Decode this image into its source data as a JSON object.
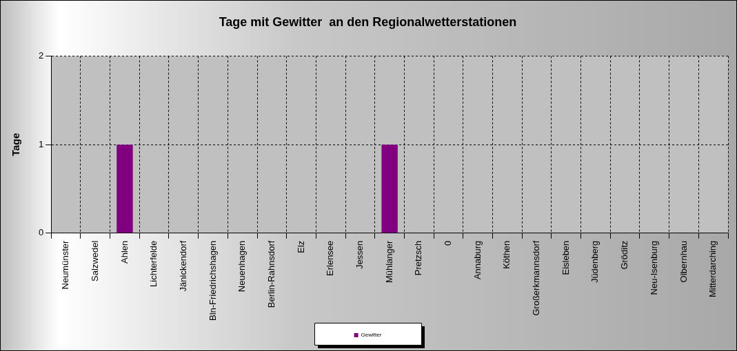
{
  "chart_data": {
    "type": "bar",
    "title": "Tage mit Gewitter  an den Regionalwetterstationen",
    "ylabel": "Tage",
    "categories": [
      "Neumünster",
      "Salzwedel",
      "Ahlen",
      "Lichterfelde",
      "Jänickendorf",
      "Bln-Friedrichshagen",
      "Neuenhagen",
      "Berlin-Rahnsdorf",
      "Elz",
      "Erlensee",
      "Jessen",
      "Mühlanger",
      "Pretzsch",
      "0",
      "Annaburg",
      "Köthen",
      "Großerkmannsdorf",
      "Eisleben",
      "Jüdenberg",
      "Gröditz",
      "Neu-Isenburg",
      "Olbernhau",
      "Mitterdarching"
    ],
    "series": [
      {
        "name": "Gewitter",
        "color": "#800080",
        "values": [
          0,
          0,
          1,
          0,
          0,
          0,
          0,
          0,
          0,
          0,
          0,
          1,
          0,
          0,
          0,
          0,
          0,
          0,
          0,
          0,
          0,
          0,
          0
        ]
      }
    ],
    "ylim": [
      0,
      2
    ],
    "yticks": [
      0,
      1,
      2
    ],
    "grid": true,
    "legend": "bottom"
  }
}
